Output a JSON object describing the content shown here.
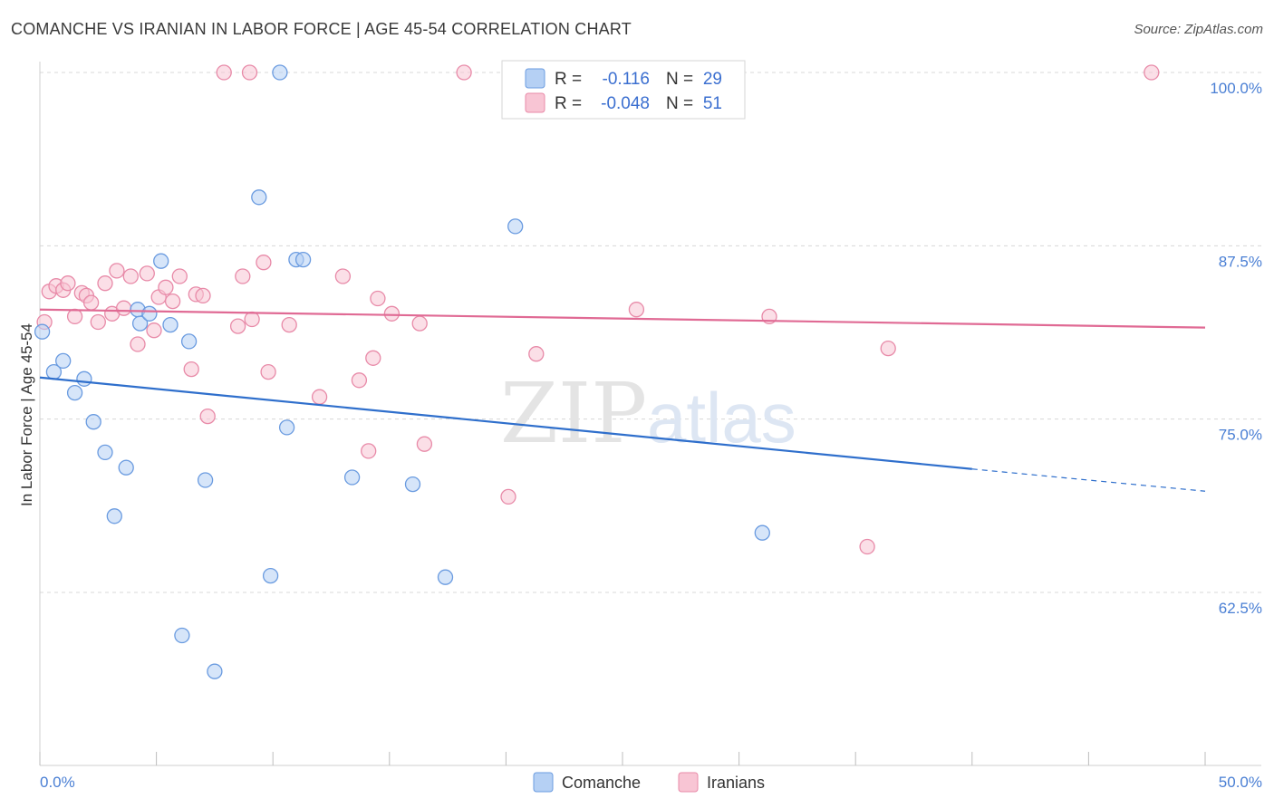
{
  "title": "COMANCHE VS IRANIAN IN LABOR FORCE | AGE 45-54 CORRELATION CHART",
  "source": "Source: ZipAtlas.com",
  "watermark": {
    "zip": "ZIP",
    "atlas": "atlas"
  },
  "colors": {
    "comanche_fill": "#b5d0f4",
    "comanche_stroke": "#6a9be0",
    "comanche_line": "#2f6fcc",
    "iranians_fill": "#f8c5d4",
    "iranians_stroke": "#e88aa8",
    "iranians_line": "#e06a94",
    "axis_text": "#4a7fd4",
    "grid": "#d8d8d8"
  },
  "legend_box": {
    "rows": [
      {
        "r_label": "R =",
        "r_value": "-0.116",
        "n_label": "N =",
        "n_value": "29"
      },
      {
        "r_label": "R =",
        "r_value": "-0.048",
        "n_label": "N =",
        "n_value": "51"
      }
    ]
  },
  "bottom_legend": [
    "Comanche",
    "Iranians"
  ],
  "chart_data": {
    "type": "scatter",
    "title": "COMANCHE VS IRANIAN IN LABOR FORCE | AGE 45-54 CORRELATION CHART",
    "xlabel": "",
    "ylabel": "In Labor Force | Age 45-54",
    "xlim": [
      0,
      50
    ],
    "ylim": [
      50,
      100
    ],
    "x_tick_labels": [
      "0.0%",
      "50.0%"
    ],
    "y_ticks": [
      62.5,
      75.0,
      87.5,
      100.0
    ],
    "y_tick_labels": [
      "62.5%",
      "75.0%",
      "87.5%",
      "100.0%"
    ],
    "grid": true,
    "legend_position": "top-center",
    "series": [
      {
        "name": "Comanche",
        "r": -0.116,
        "n": 29,
        "trend": {
          "x0": 0,
          "y0": 78.0,
          "x1": 40,
          "y1": 71.4,
          "x_end": 50,
          "y_end": 69.8
        },
        "points": [
          [
            0.1,
            81.3
          ],
          [
            0.6,
            78.4
          ],
          [
            1.0,
            79.2
          ],
          [
            1.5,
            76.9
          ],
          [
            1.9,
            77.9
          ],
          [
            2.3,
            74.8
          ],
          [
            2.8,
            72.6
          ],
          [
            3.2,
            68.0
          ],
          [
            3.7,
            71.5
          ],
          [
            4.2,
            82.9
          ],
          [
            4.3,
            81.9
          ],
          [
            4.7,
            82.6
          ],
          [
            5.2,
            86.4
          ],
          [
            5.6,
            81.8
          ],
          [
            6.1,
            59.4
          ],
          [
            6.4,
            80.6
          ],
          [
            7.1,
            70.6
          ],
          [
            7.5,
            56.8
          ],
          [
            9.4,
            91.0
          ],
          [
            9.9,
            63.7
          ],
          [
            10.3,
            100.0
          ],
          [
            10.6,
            74.4
          ],
          [
            11.0,
            86.5
          ],
          [
            11.3,
            86.5
          ],
          [
            13.4,
            70.8
          ],
          [
            16.0,
            70.3
          ],
          [
            17.4,
            63.6
          ],
          [
            20.4,
            88.9
          ],
          [
            31.0,
            66.8
          ]
        ]
      },
      {
        "name": "Iranians",
        "r": -0.048,
        "n": 51,
        "trend": {
          "x0": 0,
          "y0": 82.9,
          "x1": 50,
          "y1": 81.6
        },
        "points": [
          [
            0.2,
            82.0
          ],
          [
            0.4,
            84.2
          ],
          [
            0.7,
            84.6
          ],
          [
            1.0,
            84.3
          ],
          [
            1.2,
            84.8
          ],
          [
            1.5,
            82.4
          ],
          [
            1.8,
            84.1
          ],
          [
            2.0,
            83.9
          ],
          [
            2.2,
            83.4
          ],
          [
            2.5,
            82.0
          ],
          [
            2.8,
            84.8
          ],
          [
            3.1,
            82.6
          ],
          [
            3.3,
            85.7
          ],
          [
            3.6,
            83.0
          ],
          [
            3.9,
            85.3
          ],
          [
            4.2,
            80.4
          ],
          [
            4.6,
            85.5
          ],
          [
            4.9,
            81.4
          ],
          [
            5.1,
            83.8
          ],
          [
            5.4,
            84.5
          ],
          [
            5.7,
            83.5
          ],
          [
            6.0,
            85.3
          ],
          [
            6.5,
            78.6
          ],
          [
            6.7,
            84.0
          ],
          [
            7.0,
            83.9
          ],
          [
            7.2,
            75.2
          ],
          [
            8.5,
            81.7
          ],
          [
            8.7,
            85.3
          ],
          [
            9.1,
            82.2
          ],
          [
            9.6,
            86.3
          ],
          [
            9.8,
            78.4
          ],
          [
            10.7,
            81.8
          ],
          [
            12.0,
            76.6
          ],
          [
            13.0,
            85.3
          ],
          [
            13.7,
            77.8
          ],
          [
            14.1,
            72.7
          ],
          [
            14.3,
            79.4
          ],
          [
            14.5,
            83.7
          ],
          [
            15.1,
            82.6
          ],
          [
            16.3,
            81.9
          ],
          [
            16.5,
            73.2
          ],
          [
            18.2,
            100.0
          ],
          [
            20.1,
            69.4
          ],
          [
            21.3,
            79.7
          ],
          [
            25.6,
            82.9
          ],
          [
            31.3,
            82.4
          ],
          [
            35.5,
            65.8
          ],
          [
            36.4,
            80.1
          ],
          [
            47.7,
            100.0
          ],
          [
            7.9,
            100.0
          ],
          [
            9.0,
            100.0
          ]
        ]
      }
    ]
  }
}
